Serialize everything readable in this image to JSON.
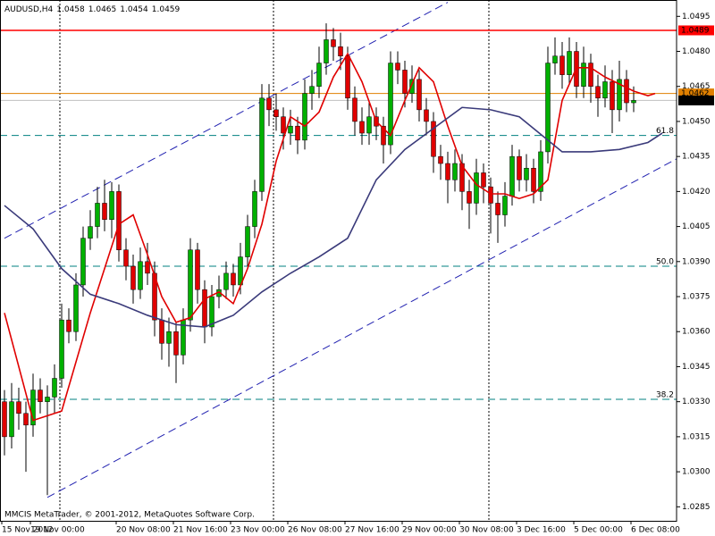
{
  "chart_data": {
    "type": "candlestick",
    "title": "AUDUSD,H4",
    "footer": "MMCIS MetaTrader, © 2001-2012, MetaQuotes Software Corp.",
    "up_color": "#00b000",
    "down_color": "#e00000",
    "wick_color": "#000000",
    "ylim": [
      1.0279,
      1.0502
    ],
    "yticks": [
      1.0495,
      {
        "value": 1.048,
        "label": "1.0480"
      },
      1.0465,
      {
        "value": 1.045,
        "label": "1.0450"
      },
      1.0435,
      {
        "value": 1.042,
        "label": "1.0420"
      },
      1.0405,
      {
        "value": 1.039,
        "label": "1.0390"
      },
      1.0375,
      {
        "value": 1.036,
        "label": "1.0360"
      },
      1.0345,
      {
        "value": 1.033,
        "label": "1.0330"
      },
      1.0315,
      {
        "value": 1.03,
        "label": "1.0300"
      },
      1.0285
    ],
    "categories": [
      "15 Nov 2012",
      null,
      null,
      null,
      "19 Nov 00:00",
      null,
      null,
      null,
      null,
      null,
      null,
      null,
      null,
      null,
      null,
      null,
      "20 Nov 08:00",
      null,
      null,
      null,
      null,
      null,
      null,
      null,
      "21 Nov 16:00",
      null,
      null,
      null,
      null,
      null,
      null,
      null,
      "23 Nov 00:00",
      null,
      null,
      null,
      null,
      null,
      null,
      null,
      "26 Nov 08:00",
      null,
      null,
      null,
      null,
      null,
      null,
      null,
      "27 Nov 16:00",
      null,
      null,
      null,
      null,
      null,
      null,
      null,
      "29 Nov 00:00",
      null,
      null,
      null,
      null,
      null,
      null,
      null,
      "30 Nov 08:00",
      null,
      null,
      null,
      null,
      null,
      null,
      null,
      "3 Dec 16:00",
      null,
      null,
      null,
      null,
      null,
      null,
      null,
      "5 Dec 00:00",
      null,
      null,
      null,
      null,
      null,
      null,
      null,
      "6 Dec 08:00"
    ],
    "ohlc": [
      [
        1.033,
        1.0335,
        1.0307,
        1.0315
      ],
      [
        1.0315,
        1.0338,
        1.031,
        1.033
      ],
      [
        1.033,
        1.0336,
        1.0318,
        1.0325
      ],
      [
        1.0325,
        1.033,
        1.03,
        1.032
      ],
      [
        1.032,
        1.0342,
        1.0315,
        1.0335
      ],
      [
        1.0335,
        1.034,
        1.0325,
        1.033
      ],
      [
        1.033,
        1.0337,
        1.029,
        1.0332
      ],
      [
        1.0332,
        1.0346,
        1.0325,
        1.034
      ],
      [
        1.034,
        1.0372,
        1.0336,
        1.0365
      ],
      [
        1.0365,
        1.037,
        1.0355,
        1.036
      ],
      [
        1.036,
        1.0385,
        1.0356,
        1.038
      ],
      [
        1.038,
        1.0405,
        1.0375,
        1.04
      ],
      [
        1.04,
        1.0412,
        1.0395,
        1.0405
      ],
      [
        1.0405,
        1.0422,
        1.04,
        1.0415
      ],
      [
        1.0415,
        1.0425,
        1.0403,
        1.0408
      ],
      [
        1.0408,
        1.0424,
        1.04,
        1.042
      ],
      [
        1.042,
        1.0423,
        1.039,
        1.0395
      ],
      [
        1.0395,
        1.04,
        1.0382,
        1.0388
      ],
      [
        1.0388,
        1.0393,
        1.0372,
        1.0378
      ],
      [
        1.0378,
        1.0396,
        1.0374,
        1.039
      ],
      [
        1.039,
        1.0398,
        1.038,
        1.0385
      ],
      [
        1.0385,
        1.039,
        1.0358,
        1.0365
      ],
      [
        1.0365,
        1.037,
        1.0348,
        1.0355
      ],
      [
        1.0355,
        1.0366,
        1.0345,
        1.036
      ],
      [
        1.036,
        1.0364,
        1.0338,
        1.035
      ],
      [
        1.035,
        1.037,
        1.0346,
        1.0365
      ],
      [
        1.0365,
        1.04,
        1.036,
        1.0395
      ],
      [
        1.0395,
        1.0398,
        1.0372,
        1.0378
      ],
      [
        1.0378,
        1.0382,
        1.0355,
        1.0362
      ],
      [
        1.0362,
        1.038,
        1.0358,
        1.0375
      ],
      [
        1.0375,
        1.0384,
        1.037,
        1.0378
      ],
      [
        1.0378,
        1.039,
        1.0374,
        1.0385
      ],
      [
        1.0385,
        1.0389,
        1.0375,
        1.038
      ],
      [
        1.038,
        1.0398,
        1.0376,
        1.0392
      ],
      [
        1.0392,
        1.041,
        1.0388,
        1.0405
      ],
      [
        1.0405,
        1.0425,
        1.04,
        1.042
      ],
      [
        1.042,
        1.0466,
        1.0416,
        1.046
      ],
      [
        1.046,
        1.0466,
        1.0448,
        1.0455
      ],
      [
        1.0455,
        1.0462,
        1.0446,
        1.0452
      ],
      [
        1.0452,
        1.0456,
        1.0438,
        1.0445
      ],
      [
        1.0445,
        1.0455,
        1.044,
        1.0448
      ],
      [
        1.0448,
        1.0452,
        1.0436,
        1.0442
      ],
      [
        1.0442,
        1.0468,
        1.0438,
        1.0462
      ],
      [
        1.0462,
        1.0472,
        1.0455,
        1.0465
      ],
      [
        1.0465,
        1.0482,
        1.046,
        1.0475
      ],
      [
        1.0475,
        1.0492,
        1.047,
        1.0485
      ],
      [
        1.0485,
        1.049,
        1.0476,
        1.0482
      ],
      [
        1.0482,
        1.0488,
        1.0472,
        1.0478
      ],
      [
        1.0478,
        1.0482,
        1.0455,
        1.046
      ],
      [
        1.046,
        1.0465,
        1.0444,
        1.045
      ],
      [
        1.045,
        1.0456,
        1.044,
        1.0445
      ],
      [
        1.0445,
        1.0458,
        1.044,
        1.0452
      ],
      [
        1.0452,
        1.0456,
        1.0442,
        1.0448
      ],
      [
        1.0448,
        1.0452,
        1.0432,
        1.044
      ],
      [
        1.044,
        1.048,
        1.0436,
        1.0475
      ],
      [
        1.0475,
        1.048,
        1.0466,
        1.0472
      ],
      [
        1.0472,
        1.0476,
        1.0456,
        1.0462
      ],
      [
        1.0462,
        1.0474,
        1.0458,
        1.0468
      ],
      [
        1.0468,
        1.0472,
        1.045,
        1.0455
      ],
      [
        1.0455,
        1.046,
        1.0444,
        1.045
      ],
      [
        1.045,
        1.0454,
        1.0428,
        1.0435
      ],
      [
        1.0435,
        1.044,
        1.0425,
        1.0432
      ],
      [
        1.0432,
        1.0437,
        1.0415,
        1.0425
      ],
      [
        1.0425,
        1.0438,
        1.042,
        1.0432
      ],
      [
        1.0432,
        1.0436,
        1.0412,
        1.042
      ],
      [
        1.042,
        1.0425,
        1.0404,
        1.0415
      ],
      [
        1.0415,
        1.0434,
        1.041,
        1.0428
      ],
      [
        1.0428,
        1.0432,
        1.0415,
        1.0422
      ],
      [
        1.0422,
        1.0426,
        1.0402,
        1.0415
      ],
      [
        1.0415,
        1.042,
        1.0398,
        1.041
      ],
      [
        1.041,
        1.0424,
        1.0405,
        1.0418
      ],
      [
        1.0418,
        1.044,
        1.0414,
        1.0435
      ],
      [
        1.0435,
        1.0438,
        1.042,
        1.0425
      ],
      [
        1.0425,
        1.0436,
        1.042,
        1.043
      ],
      [
        1.043,
        1.0434,
        1.0415,
        1.042
      ],
      [
        1.042,
        1.0442,
        1.0416,
        1.0437
      ],
      [
        1.0437,
        1.0482,
        1.0432,
        1.0475
      ],
      [
        1.0475,
        1.0486,
        1.047,
        1.0478
      ],
      [
        1.0478,
        1.0484,
        1.0464,
        1.047
      ],
      [
        1.047,
        1.0486,
        1.0466,
        1.048
      ],
      [
        1.048,
        1.0484,
        1.046,
        1.0465
      ],
      [
        1.0465,
        1.0482,
        1.046,
        1.0475
      ],
      [
        1.0475,
        1.0479,
        1.0458,
        1.0465
      ],
      [
        1.0465,
        1.047,
        1.0452,
        1.046
      ],
      [
        1.046,
        1.0474,
        1.0456,
        1.0467
      ],
      [
        1.0467,
        1.0472,
        1.0445,
        1.0455
      ],
      [
        1.0455,
        1.0476,
        1.045,
        1.0468
      ],
      [
        1.0468,
        1.0472,
        1.0454,
        1.0458
      ],
      [
        1.0458,
        1.0465,
        1.0454,
        1.0459
      ]
    ],
    "lines": [
      {
        "color": "#e00000",
        "x": [
          0,
          4,
          8,
          12,
          16,
          18,
          20,
          22,
          24,
          26,
          28,
          30,
          32,
          34,
          36,
          38,
          40,
          42,
          44,
          46,
          48,
          50,
          52,
          54,
          56,
          58,
          60,
          62,
          64,
          66,
          68,
          70,
          72,
          74,
          76,
          78,
          80,
          82,
          84,
          86,
          88,
          90,
          91
        ],
        "values": [
          1.0368,
          1.0322,
          1.0326,
          1.0368,
          1.0406,
          1.041,
          1.0393,
          1.0375,
          1.0364,
          1.0366,
          1.0374,
          1.0377,
          1.0372,
          1.0387,
          1.0406,
          1.0433,
          1.0452,
          1.0448,
          1.0454,
          1.0469,
          1.0479,
          1.0467,
          1.045,
          1.0444,
          1.0459,
          1.0473,
          1.0467,
          1.0448,
          1.0431,
          1.0423,
          1.0419,
          1.0419,
          1.0417,
          1.0419,
          1.0425,
          1.0459,
          1.0473,
          1.0473,
          1.0469,
          1.0466,
          1.0463,
          1.0461,
          1.0462
        ]
      },
      {
        "color": "#3a3a7a",
        "x": [
          0,
          4,
          8,
          12,
          16,
          20,
          24,
          28,
          32,
          36,
          40,
          44,
          48,
          52,
          56,
          60,
          64,
          68,
          72,
          76,
          78,
          82,
          86,
          90,
          92
        ],
        "values": [
          1.0414,
          1.0404,
          1.0387,
          1.0376,
          1.0372,
          1.0367,
          1.0363,
          1.0362,
          1.0367,
          1.0377,
          1.0385,
          1.0392,
          1.04,
          1.0425,
          1.0438,
          1.0447,
          1.0456,
          1.0455,
          1.0452,
          1.0442,
          1.0437,
          1.0437,
          1.0438,
          1.0441,
          1.0445
        ]
      }
    ],
    "channel": [
      {
        "color": "#2020b0",
        "x": [
          0,
          62
        ],
        "y": [
          1.04,
          1.0501
        ]
      },
      {
        "color": "#2020b0",
        "x": [
          6,
          94
        ],
        "y": [
          1.0289,
          1.0434
        ]
      }
    ],
    "fib_levels": [
      {
        "value": 1.0444,
        "label": "61.8",
        "color": "#008080"
      },
      {
        "value": 1.0388,
        "label": "50.0",
        "color": "#008080"
      },
      {
        "value": 1.0331,
        "label": "38.2",
        "color": "#008080"
      }
    ],
    "price_lines": [
      {
        "value": 1.0489,
        "color": "#ff0000"
      },
      {
        "value": 1.0462,
        "color": "#e08000"
      },
      {
        "value": 1.0459,
        "color": "#000000"
      }
    ]
  }
}
